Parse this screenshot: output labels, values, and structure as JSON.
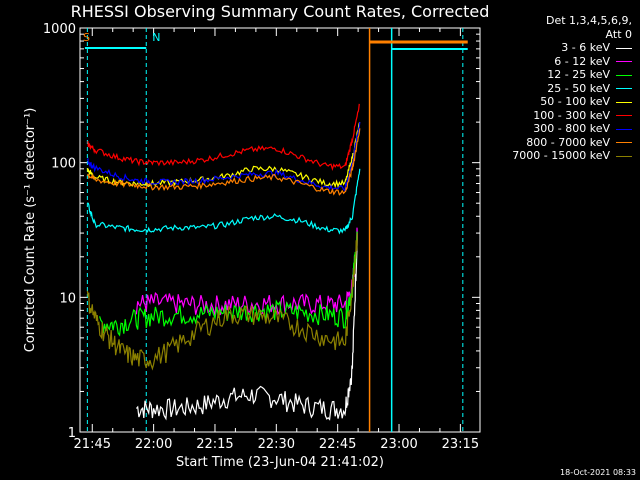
{
  "chart_data": {
    "type": "line",
    "title": "RHESSI Observing Summary Count Rates, Corrected",
    "xlabel": "Start Time (23-Jun-04 21:41:02)",
    "ylabel": "Corrected Count Rate (s⁻¹ detector⁻¹)",
    "yscale": "log",
    "ylim": [
      1,
      1000
    ],
    "xlim_minutes": [
      21.7,
      23.33
    ],
    "ytick_labels": [
      "1",
      "10",
      "100",
      "1000"
    ],
    "xtick_labels": [
      "21:45",
      "22:00",
      "22:15",
      "22:30",
      "22:45",
      "23:00",
      "23:15"
    ],
    "legend_header": [
      "Det 1,3,4,5,6,9,",
      "Att 0"
    ],
    "series": [
      {
        "name": "3 - 6 keV",
        "color": "#ffffff",
        "x": [
          21.93,
          22.0,
          22.1,
          22.2,
          22.3,
          22.4,
          22.5,
          22.6,
          22.7,
          22.78,
          22.81,
          22.83
        ],
        "values": [
          1.5,
          1.5,
          1.5,
          1.6,
          1.8,
          1.9,
          1.8,
          1.6,
          1.5,
          1.5,
          3,
          30
        ]
      },
      {
        "name": "6 - 12 keV",
        "color": "#ff00ff",
        "x": [
          21.93,
          22.0,
          22.1,
          22.2,
          22.3,
          22.4,
          22.5,
          22.6,
          22.7,
          22.78,
          22.81,
          22.83
        ],
        "values": [
          9,
          9.2,
          9,
          8.8,
          8.9,
          9,
          9.1,
          9,
          8.9,
          9,
          12,
          30
        ]
      },
      {
        "name": "12 - 25 keV",
        "color": "#00ff00",
        "x": [
          21.78,
          21.85,
          21.93,
          22.0,
          22.1,
          22.2,
          22.3,
          22.4,
          22.5,
          22.6,
          22.7,
          22.78,
          22.81,
          22.83
        ],
        "values": [
          6.5,
          6.3,
          7,
          7.3,
          7.5,
          7.6,
          7.8,
          8,
          8,
          7.8,
          7.5,
          7.2,
          12,
          30
        ]
      },
      {
        "name": "25 - 50 keV",
        "color": "#00ffff",
        "x": [
          21.73,
          21.76,
          21.85,
          21.93,
          22.0,
          22.1,
          22.2,
          22.3,
          22.4,
          22.5,
          22.6,
          22.7,
          22.78,
          22.81,
          22.84
        ],
        "values": [
          50,
          35,
          33,
          32,
          32,
          33,
          33,
          35,
          39,
          40,
          37,
          32,
          31,
          40,
          90
        ]
      },
      {
        "name": "50 - 100 keV",
        "color": "#ffff00",
        "x": [
          21.73,
          21.76,
          21.85,
          21.93,
          22.0,
          22.1,
          22.2,
          22.3,
          22.4,
          22.5,
          22.6,
          22.7,
          22.78,
          22.81,
          22.84
        ],
        "values": [
          88,
          78,
          72,
          70,
          70,
          72,
          75,
          80,
          90,
          90,
          80,
          70,
          70,
          110,
          200
        ]
      },
      {
        "name": "100 - 300 keV",
        "color": "#ff0000",
        "x": [
          21.73,
          21.76,
          21.85,
          21.93,
          22.0,
          22.1,
          22.2,
          22.3,
          22.4,
          22.5,
          22.6,
          22.7,
          22.78,
          22.81,
          22.84
        ],
        "values": [
          138,
          125,
          110,
          102,
          100,
          100,
          105,
          115,
          125,
          128,
          110,
          95,
          93,
          150,
          270
        ]
      },
      {
        "name": "300 - 800 keV",
        "color": "#0000ff",
        "x": [
          21.73,
          21.76,
          21.85,
          21.93,
          22.0,
          22.1,
          22.2,
          22.3,
          22.4,
          22.5,
          22.6,
          22.7,
          22.78,
          22.81,
          22.84
        ],
        "values": [
          102,
          92,
          80,
          74,
          72,
          72,
          74,
          78,
          82,
          84,
          74,
          66,
          64,
          100,
          200
        ]
      },
      {
        "name": "800 - 7000 keV",
        "color": "#ff8000",
        "x": [
          21.73,
          21.76,
          21.85,
          21.93,
          22.0,
          22.1,
          22.2,
          22.3,
          22.4,
          22.5,
          22.6,
          22.7,
          22.78,
          22.81,
          22.84
        ],
        "values": [
          82,
          75,
          70,
          68,
          66,
          66,
          68,
          72,
          76,
          78,
          70,
          62,
          60,
          90,
          180
        ]
      },
      {
        "name": "7000 - 15000 keV",
        "color": "#8b8000",
        "x": [
          21.73,
          21.77,
          21.82,
          21.87,
          21.93,
          22.0,
          22.1,
          22.2,
          22.3,
          22.4,
          22.5,
          22.6,
          22.7,
          22.78,
          22.81,
          22.83
        ],
        "values": [
          10,
          6.5,
          5,
          4,
          3.5,
          3.5,
          4.5,
          6,
          7.5,
          7.5,
          7,
          6,
          5,
          4.6,
          12,
          30
        ]
      }
    ],
    "annotations": [
      {
        "label": "S",
        "color": "#ff8000",
        "x": 21.7
      },
      {
        "label": "N",
        "color": "#00ffff",
        "x": 21.97
      }
    ]
  },
  "timestamp": "18-Oct-2021 08:33"
}
